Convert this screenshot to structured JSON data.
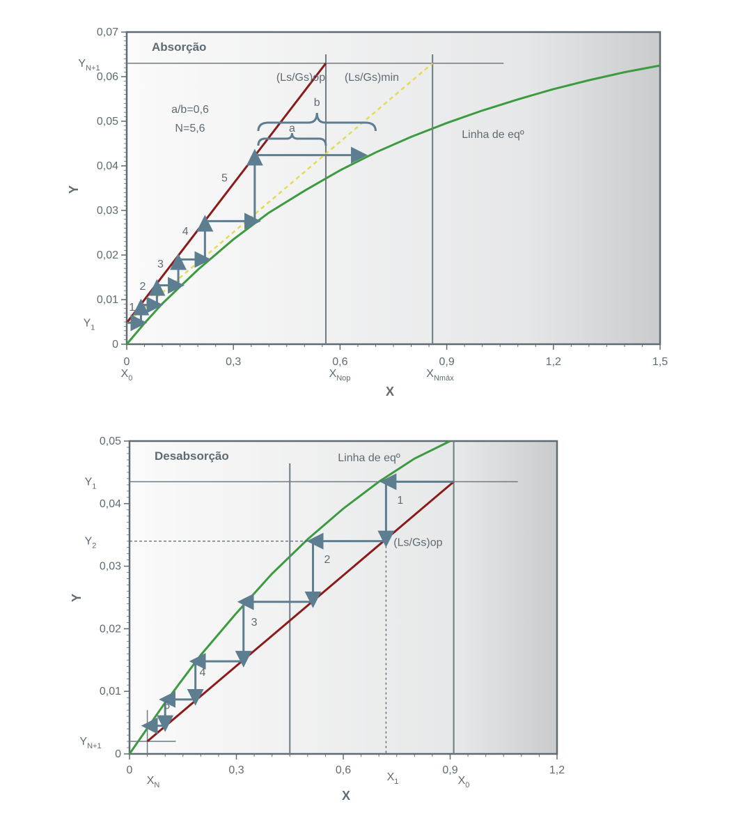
{
  "chart_data": [
    {
      "type": "line",
      "title": "Absorção",
      "xlabel": "X",
      "ylabel": "Y",
      "xlim": [
        0,
        1.5
      ],
      "ylim": [
        0,
        0.07
      ],
      "x_ticks": [
        "0",
        "0,3",
        "0,6",
        "0,9",
        "1,2",
        "1,5"
      ],
      "y_ticks": [
        "0",
        "0,01",
        "0,02",
        "0,03",
        "0,04",
        "0,05",
        "0,06",
        "0,07"
      ],
      "x_markers": [
        {
          "label_main": "X",
          "label_sub": "0",
          "x": 0
        },
        {
          "label_main": "X",
          "label_sub": "Nop",
          "x": 0.56
        },
        {
          "label_main": "X",
          "label_sub": "Nmáx",
          "x": 0.86
        }
      ],
      "y_markers": [
        {
          "label_main": "Y",
          "label_sub": "N+1",
          "y": 0.063
        },
        {
          "label_main": "Y",
          "label_sub": "1",
          "y": 0.0048
        }
      ],
      "equilibrium_label": "Linha de eqº",
      "equilibrium_points": [
        [
          0,
          0
        ],
        [
          0.05,
          0.0047
        ],
        [
          0.1,
          0.0091
        ],
        [
          0.2,
          0.0167
        ],
        [
          0.3,
          0.0235
        ],
        [
          0.4,
          0.0295
        ],
        [
          0.5,
          0.0344
        ],
        [
          0.6,
          0.039
        ],
        [
          0.7,
          0.043
        ],
        [
          0.8,
          0.0465
        ],
        [
          0.9,
          0.0496
        ],
        [
          1.0,
          0.0524
        ],
        [
          1.1,
          0.0549
        ],
        [
          1.2,
          0.0572
        ],
        [
          1.3,
          0.0592
        ],
        [
          1.4,
          0.061
        ],
        [
          1.5,
          0.0625
        ]
      ],
      "series": [
        {
          "name": "(Ls/Gs)op",
          "x": [
            0,
            0.56
          ],
          "y": [
            0.0048,
            0.063
          ]
        },
        {
          "name": "(Ls/Gs)min",
          "x": [
            0,
            0.86
          ],
          "y": [
            0.0048,
            0.063
          ]
        }
      ],
      "steps": [
        [
          0.0,
          0.0048
        ],
        [
          0.04,
          0.0048
        ],
        [
          0.04,
          0.0088
        ],
        [
          0.085,
          0.0088
        ],
        [
          0.085,
          0.0132
        ],
        [
          0.145,
          0.0132
        ],
        [
          0.145,
          0.019
        ],
        [
          0.22,
          0.019
        ],
        [
          0.22,
          0.0276
        ],
        [
          0.36,
          0.0276
        ],
        [
          0.36,
          0.0424
        ],
        [
          0.66,
          0.0424
        ]
      ],
      "step_labels": [
        {
          "text": "1",
          "x": 0.015,
          "y": 0.0075
        },
        {
          "text": "2",
          "x": 0.045,
          "y": 0.0122
        },
        {
          "text": "3",
          "x": 0.095,
          "y": 0.0172
        },
        {
          "text": "4",
          "x": 0.165,
          "y": 0.0245
        },
        {
          "text": "5",
          "x": 0.275,
          "y": 0.0365
        }
      ],
      "annotations": {
        "ratio": "a/b=0,6",
        "stages": "N=5,6",
        "brace_a": "a",
        "brace_b": "b",
        "op_label": "(Ls/Gs)op",
        "min_label": "(Ls/Gs)min"
      }
    },
    {
      "type": "line",
      "title": "Desabsorção",
      "xlabel": "X",
      "ylabel": "Y",
      "xlim": [
        0,
        1.2
      ],
      "ylim": [
        0,
        0.05
      ],
      "x_ticks": [
        "0",
        "0,3",
        "0,6",
        "0,9",
        "1,2"
      ],
      "y_ticks": [
        "0",
        "0,01",
        "0,02",
        "0,03",
        "0,04",
        "0,05"
      ],
      "x_markers": [
        {
          "label_main": "X",
          "label_sub": "N",
          "x": 0.05
        },
        {
          "label_main": "X",
          "label_sub": "1",
          "x": 0.72
        },
        {
          "label_main": "X",
          "label_sub": "0",
          "x": 0.91
        }
      ],
      "y_markers": [
        {
          "label_main": "Y",
          "label_sub": "1",
          "y": 0.0435
        },
        {
          "label_main": "Y",
          "label_sub": "2",
          "y": 0.034
        },
        {
          "label_main": "Y",
          "label_sub": "N+1",
          "y": 0.002
        }
      ],
      "equilibrium_label": "Linha de eqº",
      "equilibrium_points": [
        [
          0,
          0
        ],
        [
          0.1,
          0.0082
        ],
        [
          0.2,
          0.0158
        ],
        [
          0.3,
          0.0225
        ],
        [
          0.4,
          0.0288
        ],
        [
          0.5,
          0.0343
        ],
        [
          0.6,
          0.0392
        ],
        [
          0.7,
          0.0435
        ],
        [
          0.8,
          0.0472
        ],
        [
          0.9,
          0.05
        ]
      ],
      "series": [
        {
          "name": "(Ls/Gs)op",
          "x": [
            0.05,
            0.91
          ],
          "y": [
            0.002,
            0.0435
          ]
        }
      ],
      "steps": [
        [
          0.91,
          0.0435
        ],
        [
          0.72,
          0.0435
        ],
        [
          0.72,
          0.034
        ],
        [
          0.515,
          0.034
        ],
        [
          0.515,
          0.0243
        ],
        [
          0.32,
          0.0243
        ],
        [
          0.32,
          0.0148
        ],
        [
          0.185,
          0.0148
        ],
        [
          0.185,
          0.0087
        ],
        [
          0.1,
          0.0087
        ],
        [
          0.1,
          0.0045
        ],
        [
          0.05,
          0.0045
        ]
      ],
      "step_labels": [
        {
          "text": "1",
          "x": 0.76,
          "y": 0.04
        },
        {
          "text": "2",
          "x": 0.555,
          "y": 0.0305
        },
        {
          "text": "3",
          "x": 0.35,
          "y": 0.0205
        },
        {
          "text": "4",
          "x": 0.205,
          "y": 0.0125
        },
        {
          "text": "5",
          "x": 0.105,
          "y": 0.0072
        }
      ],
      "annotations": {
        "op_label": "(Ls/Gs)op",
        "vertical_line_x": 0.45
      }
    }
  ],
  "colors": {
    "equilibrium": "#3c9a3f",
    "operating": "#8b1a1a",
    "minimum": "#e3dc52",
    "steps": "#5d7d91",
    "axis": "#5f6b73",
    "gridline": "#6d7b84"
  }
}
